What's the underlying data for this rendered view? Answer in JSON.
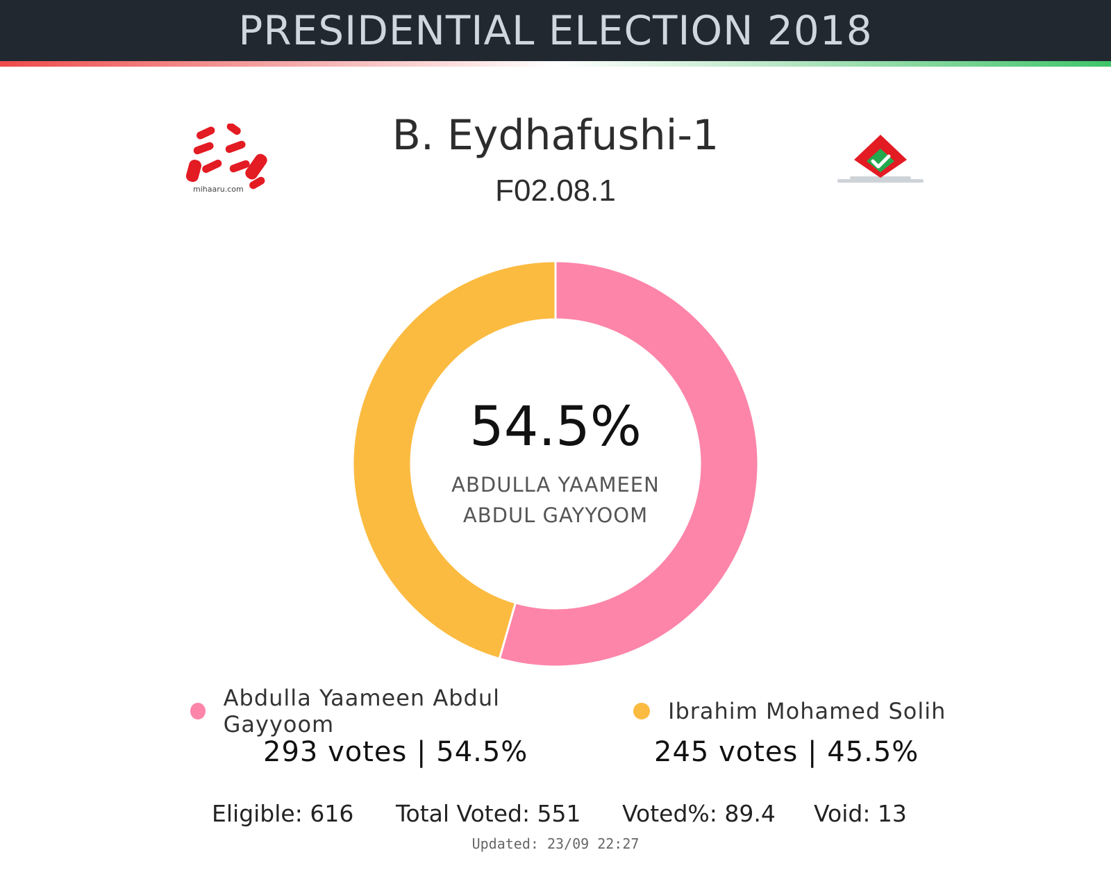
{
  "header": {
    "title": "PRESIDENTIAL ELECTION 2018"
  },
  "constituency": {
    "name": "B. Eydhafushi-1",
    "code": "F02.08.1"
  },
  "logos": {
    "left_text": "mihaaru.com"
  },
  "colors": {
    "header_bg": "#212830",
    "accent_red": "#ee4b4b",
    "accent_green": "#3fc46a"
  },
  "chart_data": {
    "type": "pie",
    "variant": "donut",
    "series": [
      {
        "name": "Abdulla Yaameen Abdul Gayyoom",
        "value": 293,
        "percent": 54.5,
        "color": "#fd85a9"
      },
      {
        "name": "Ibrahim Mohamed Solih",
        "value": 245,
        "percent": 45.5,
        "color": "#fbbb41"
      }
    ],
    "center": {
      "value_label": "54.5%",
      "name_line1": "ABDULLA YAAMEEN",
      "name_line2": "ABDUL GAYYOOM"
    },
    "legend": [
      {
        "label": "Abdulla Yaameen Abdul Gayyoom",
        "stat": "293 votes | 54.5%"
      },
      {
        "label": "Ibrahim Mohamed Solih",
        "stat": "245 votes | 45.5%"
      }
    ]
  },
  "stats": {
    "eligible": "Eligible: 616",
    "total_voted": "Total Voted: 551",
    "voted_pct": "Voted%: 89.4",
    "void": "Void: 13"
  },
  "updated": "Updated: 23/09 22:27"
}
